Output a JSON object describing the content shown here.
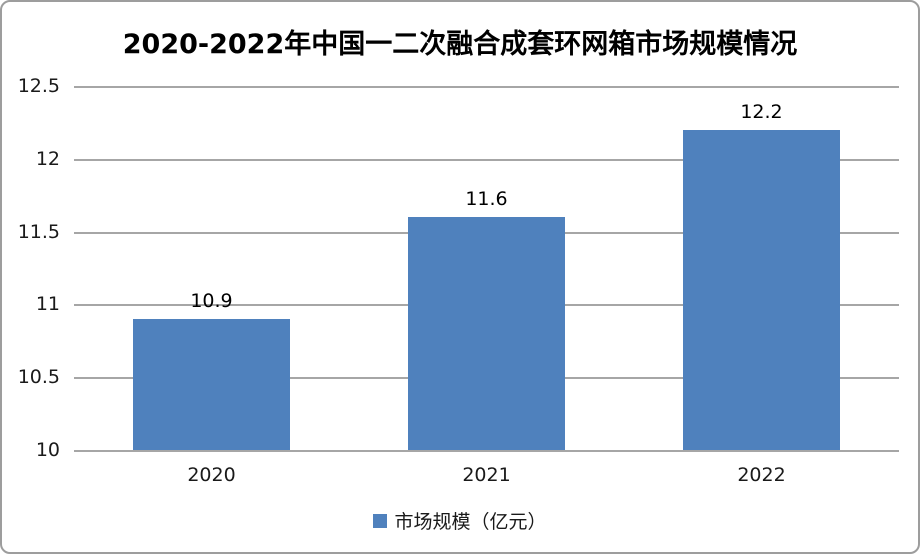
{
  "frame": {
    "background": "#ffffff",
    "border_color": "#9d9d9d"
  },
  "chart_data": {
    "type": "bar",
    "title": "2020-2022年中国一二次融合成套环网箱市场规模情况",
    "categories": [
      "2020",
      "2021",
      "2022"
    ],
    "series": [
      {
        "name": "市场规模（亿元）",
        "values": [
          10.9,
          11.6,
          12.2
        ],
        "value_labels": [
          "10.9",
          "11.6",
          "12.2"
        ],
        "color": "#4f81bd"
      }
    ],
    "ylim": [
      10,
      12.5
    ],
    "yticks": [
      10,
      10.5,
      11,
      11.5,
      12,
      12.5
    ],
    "ytick_labels": [
      "10",
      "10.5",
      "11",
      "11.5",
      "12",
      "12.5"
    ],
    "grid": true,
    "gridline_color": "#a6a6a6",
    "legend_position": "bottom",
    "xlabel": "",
    "ylabel": ""
  }
}
